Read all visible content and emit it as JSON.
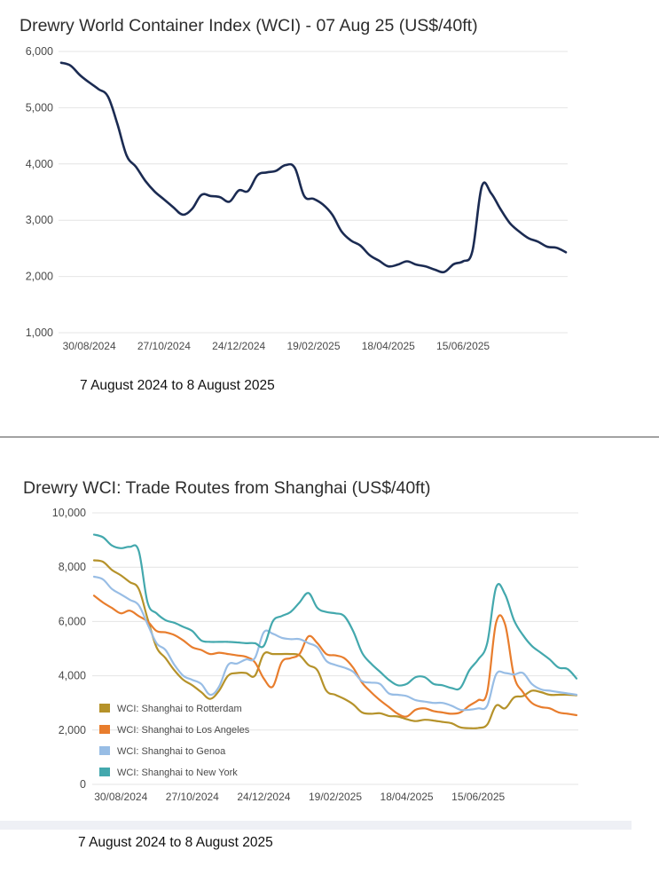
{
  "colors": {
    "wci": "#1b2b52",
    "rotterdam": "#b5922a",
    "los_angeles": "#e87d2d",
    "genoa": "#98bde5",
    "new_york": "#43a8ad",
    "grid": "#e4e4e4"
  },
  "chart1": {
    "title": "Drewry World Container Index (WCI) - 07 Aug 25 (US$/40ft)",
    "caption": "7 August 2024 to 8 August 2025"
  },
  "chart2": {
    "title": "Drewry WCI: Trade Routes from Shanghai (US$/40ft)",
    "caption": "7 August 2024 to 8 August 2025"
  },
  "chart_data": [
    {
      "type": "line",
      "title": "Drewry World Container Index (WCI) - 07 Aug 25 (US$/40ft)",
      "ylim": [
        1000,
        6000
      ],
      "y_ticks": [
        1000,
        2000,
        3000,
        4000,
        5000,
        6000
      ],
      "y_tick_labels": [
        "1,000",
        "2,000",
        "3,000",
        "4,000",
        "5,000",
        "6,000"
      ],
      "x_tick_labels": [
        "30/08/2024",
        "27/10/2024",
        "24/12/2024",
        "19/02/2025",
        "18/04/2025",
        "15/06/2025"
      ],
      "x_tick_index": [
        3,
        11,
        19,
        27,
        35,
        43
      ],
      "grid": true,
      "series": [
        {
          "key": "wci",
          "values": [
            5800,
            5750,
            5580,
            5450,
            5330,
            5200,
            4720,
            4150,
            3950,
            3700,
            3510,
            3370,
            3230,
            3100,
            3200,
            3450,
            3430,
            3410,
            3330,
            3530,
            3520,
            3800,
            3850,
            3880,
            3980,
            3930,
            3430,
            3380,
            3280,
            3100,
            2800,
            2640,
            2550,
            2380,
            2280,
            2180,
            2210,
            2270,
            2210,
            2180,
            2120,
            2080,
            2220,
            2270,
            2450,
            3600,
            3480,
            3200,
            2950,
            2800,
            2680,
            2620,
            2530,
            2510,
            2430
          ]
        }
      ]
    },
    {
      "type": "line",
      "title": "Drewry WCI: Trade Routes from Shanghai (US$/40ft)",
      "ylim": [
        0,
        10000
      ],
      "y_ticks": [
        0,
        2000,
        4000,
        6000,
        8000,
        10000
      ],
      "y_tick_labels": [
        "0",
        "2,000",
        "4,000",
        "6,000",
        "8,000",
        "10,000"
      ],
      "x_tick_labels": [
        "30/08/2024",
        "27/10/2024",
        "24/12/2024",
        "19/02/2025",
        "18/04/2025",
        "15/06/2025"
      ],
      "x_tick_index": [
        3,
        11,
        19,
        27,
        35,
        43
      ],
      "grid": true,
      "legend_position": "bottom-left",
      "series": [
        {
          "key": "rotterdam",
          "name": "WCI: Shanghai to Rotterdam",
          "values": [
            8250,
            8200,
            7900,
            7700,
            7450,
            7200,
            6100,
            5050,
            4650,
            4200,
            3850,
            3650,
            3400,
            3150,
            3450,
            4000,
            4100,
            4100,
            4000,
            4800,
            4800,
            4800,
            4800,
            4750,
            4400,
            4200,
            3450,
            3300,
            3150,
            2950,
            2650,
            2600,
            2620,
            2520,
            2500,
            2400,
            2330,
            2380,
            2350,
            2300,
            2250,
            2100,
            2070,
            2080,
            2200,
            2900,
            2800,
            3200,
            3250,
            3450,
            3400,
            3300,
            3300,
            3300,
            3280
          ]
        },
        {
          "key": "los_angeles",
          "name": "WCI: Shanghai to Los Angeles",
          "values": [
            6950,
            6700,
            6500,
            6300,
            6400,
            6200,
            6000,
            5650,
            5600,
            5500,
            5300,
            5050,
            4950,
            4800,
            4850,
            4800,
            4750,
            4700,
            4500,
            3900,
            3600,
            4500,
            4650,
            4800,
            5450,
            5200,
            4800,
            4750,
            4650,
            4300,
            3750,
            3400,
            3100,
            2850,
            2600,
            2500,
            2750,
            2800,
            2700,
            2650,
            2600,
            2650,
            2900,
            3100,
            3400,
            5950,
            5900,
            4000,
            3400,
            3000,
            2850,
            2800,
            2650,
            2600,
            2550
          ]
        },
        {
          "key": "genoa",
          "name": "WCI: Shanghai to Genoa",
          "values": [
            7650,
            7550,
            7200,
            7000,
            6800,
            6600,
            5900,
            5200,
            4950,
            4400,
            4000,
            3850,
            3700,
            3300,
            3600,
            4400,
            4450,
            4600,
            4650,
            5600,
            5550,
            5400,
            5350,
            5350,
            5200,
            5050,
            4550,
            4400,
            4300,
            4150,
            3800,
            3750,
            3700,
            3350,
            3300,
            3250,
            3100,
            3050,
            3000,
            3000,
            2900,
            2750,
            2750,
            2800,
            2900,
            4050,
            4100,
            4050,
            4100,
            3700,
            3500,
            3450,
            3400,
            3350,
            3300
          ]
        },
        {
          "key": "new_york",
          "name": "WCI: Shanghai to New York",
          "values": [
            9200,
            9100,
            8800,
            8700,
            8750,
            8600,
            6700,
            6300,
            6050,
            5950,
            5800,
            5650,
            5300,
            5250,
            5250,
            5250,
            5230,
            5200,
            5200,
            5100,
            6000,
            6200,
            6350,
            6700,
            7050,
            6500,
            6350,
            6300,
            6200,
            5650,
            4850,
            4450,
            4150,
            3850,
            3650,
            3700,
            3950,
            3950,
            3700,
            3650,
            3550,
            3550,
            4200,
            4600,
            5200,
            7250,
            7000,
            6050,
            5500,
            5100,
            4850,
            4600,
            4300,
            4250,
            3900
          ]
        }
      ]
    }
  ]
}
